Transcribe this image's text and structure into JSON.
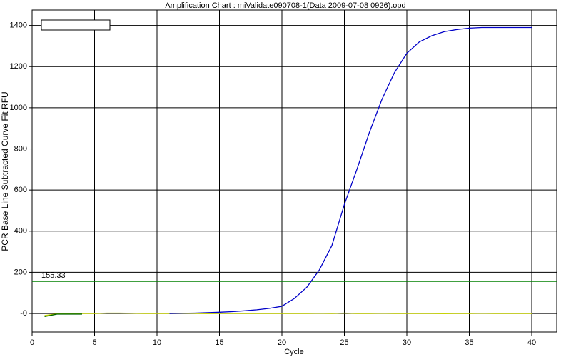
{
  "chart_data": {
    "type": "line",
    "title": "Amplification Chart : miValidate090708-1(Data 2009-07-08 0926).opd",
    "x_label": "Cycle",
    "y_label": "PCR Base Line Subtracted Curve Fit RFU",
    "x": [
      1,
      2,
      3,
      4,
      5,
      6,
      7,
      8,
      9,
      10,
      11,
      12,
      13,
      14,
      15,
      16,
      17,
      18,
      19,
      20,
      21,
      22,
      23,
      24,
      25,
      26,
      27,
      28,
      29,
      30,
      31,
      32,
      33,
      34,
      35,
      36,
      37,
      38,
      39,
      40
    ],
    "series": [
      {
        "color": "#c8d400",
        "values": [
          -10,
          -2,
          0,
          0,
          0,
          2,
          2,
          1,
          0,
          0,
          0,
          0,
          0,
          -1,
          0,
          0,
          0,
          0,
          0,
          0,
          0,
          0,
          1,
          0,
          2,
          0,
          0,
          1,
          0,
          0,
          0,
          0,
          -1,
          0,
          0,
          1,
          0,
          0,
          0,
          0
        ]
      },
      {
        "color": "#006400",
        "values": [
          -15,
          -3,
          -3,
          -3,
          null,
          null,
          null,
          null,
          null,
          null,
          null,
          null,
          null,
          null,
          null,
          null,
          null,
          null,
          null,
          null,
          null,
          null,
          null,
          null,
          null,
          null,
          null,
          null,
          null,
          null,
          null,
          null,
          null,
          null,
          null,
          null,
          null,
          null,
          null,
          null
        ]
      },
      {
        "color": "#0000c8",
        "values": [
          null,
          null,
          null,
          null,
          null,
          null,
          null,
          null,
          null,
          null,
          0,
          1,
          2,
          4,
          6,
          9,
          13,
          18,
          25,
          35,
          73,
          128,
          212,
          330,
          530,
          700,
          880,
          1040,
          1170,
          1265,
          1320,
          1350,
          1370,
          1380,
          1387,
          1390,
          1390,
          1390,
          1390,
          1390
        ]
      }
    ],
    "threshold": 155.33,
    "threshold_color": "#008000",
    "xlim": [
      0,
      42
    ],
    "ylim": [
      -90,
      1475
    ],
    "xticks": [
      0,
      5,
      10,
      15,
      20,
      25,
      30,
      35,
      40
    ],
    "yticks": [
      {
        "value": 0,
        "label": "-0"
      },
      200,
      400,
      600,
      800,
      1000,
      1200,
      1400
    ],
    "grid": true
  }
}
